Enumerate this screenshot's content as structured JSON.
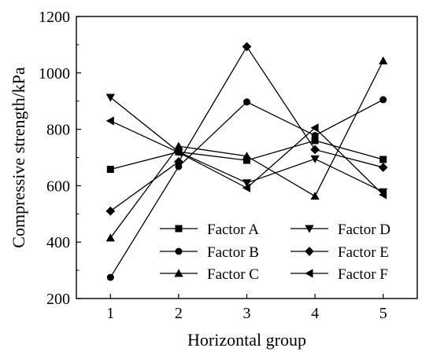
{
  "chart_data": {
    "type": "line",
    "xlabel": "Horizontal group",
    "ylabel": "Compressive strength/kPa",
    "xlim": [
      0.5,
      5.5
    ],
    "ylim": [
      200,
      1200
    ],
    "x": [
      1,
      2,
      3,
      4,
      5
    ],
    "x_ticks": [
      "1",
      "2",
      "3",
      "4",
      "5"
    ],
    "y_ticks": [
      "200",
      "400",
      "600",
      "800",
      "1000",
      "1200"
    ],
    "y_tick_values": [
      200,
      400,
      600,
      800,
      1000,
      1200
    ],
    "grid": false,
    "legend_position": "bottom-center",
    "color": "#000000",
    "series": [
      {
        "name": "Factor A",
        "marker": "square",
        "values": [
          658,
          720,
          690,
          760,
          693
        ]
      },
      {
        "name": "Factor B",
        "marker": "circle",
        "values": [
          275,
          668,
          897,
          778,
          905
        ]
      },
      {
        "name": "Factor C",
        "marker": "triangle-up",
        "values": [
          415,
          740,
          705,
          563,
          1043
        ]
      },
      {
        "name": "Factor D",
        "marker": "triangle-down",
        "values": [
          913,
          720,
          610,
          695,
          578
        ]
      },
      {
        "name": "Factor E",
        "marker": "diamond",
        "values": [
          510,
          685,
          1093,
          728,
          665
        ]
      },
      {
        "name": "Factor F",
        "marker": "triangle-left",
        "values": [
          830,
          718,
          592,
          805,
          568
        ]
      }
    ]
  }
}
